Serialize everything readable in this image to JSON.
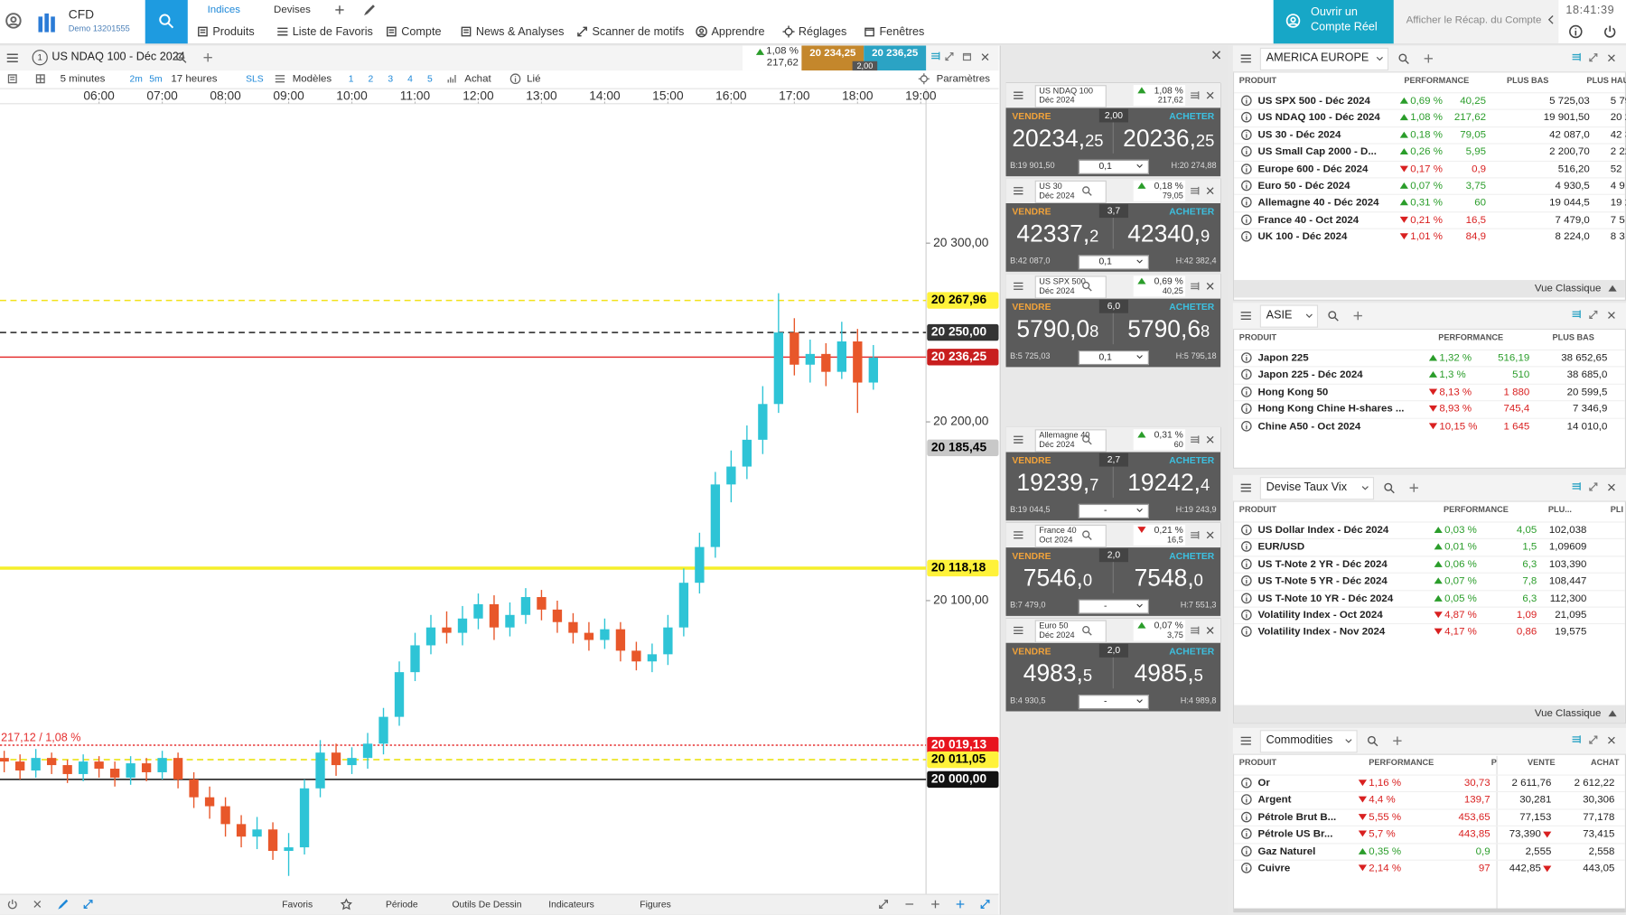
{
  "top_bar": {
    "brand": "CFD",
    "account": "Demo 13201555",
    "tabs": [
      "Indices",
      "Devises"
    ],
    "menu": [
      "Produits",
      "Liste de Favoris",
      "Compte",
      "News & Analyses",
      "Scanner de motifs",
      "Apprendre",
      "Réglages",
      "Fenêtres"
    ],
    "open_account": [
      "Ouvrir un",
      "Compte Réel"
    ],
    "summary": "Afficher le Récap. du Compte",
    "clock": "18:41:39"
  },
  "chart_window": {
    "window_number": "1",
    "instrument": "US NDAQ 100 - Déc 2024",
    "change": "1,08 %",
    "change_pts": "217,62",
    "sell": "20 234,25",
    "buy": "20 236,25",
    "spread": "2,00",
    "toolbar": {
      "interval": "5 minutes",
      "short": [
        "2m",
        "5m"
      ],
      "period": "17 heures",
      "sls": "SLS",
      "models": "Modèles",
      "numbers": [
        "1",
        "2",
        "3",
        "4",
        "5"
      ],
      "buy": "Achat",
      "linked": "Lié",
      "settings": "Paramètres"
    },
    "bottom": [
      "Favoris",
      "Période",
      "Outils De Dessin",
      "Indicateurs",
      "Figures"
    ]
  },
  "chart_data": {
    "type": "candlestick",
    "up_color": "#2ec4d6",
    "down_color": "#e8572a",
    "xlim": [
      "04:26",
      "19:05"
    ],
    "xticks": [
      "06:00",
      "07:00",
      "08:00",
      "09:00",
      "10:00",
      "11:00",
      "12:00",
      "13:00",
      "14:00",
      "15:00",
      "16:00",
      "17:00",
      "18:00",
      "19:00"
    ],
    "ylim": [
      19936,
      20378
    ],
    "yticks": [
      {
        "value": 20100,
        "label": "20 100,00"
      },
      {
        "value": 20200,
        "label": "20 200,00"
      },
      {
        "value": 20300,
        "label": "20 300,00"
      }
    ],
    "x": [
      "04:30",
      "04:45",
      "05:00",
      "05:15",
      "05:30",
      "05:45",
      "06:00",
      "06:15",
      "06:30",
      "06:45",
      "07:00",
      "07:15",
      "07:30",
      "07:45",
      "08:00",
      "08:15",
      "08:30",
      "08:45",
      "09:00",
      "09:15",
      "09:30",
      "09:45",
      "10:00",
      "10:15",
      "10:30",
      "10:45",
      "11:00",
      "11:15",
      "11:30",
      "11:45",
      "12:00",
      "12:15",
      "12:30",
      "12:45",
      "13:00",
      "13:15",
      "13:30",
      "13:45",
      "14:00",
      "14:15",
      "14:30",
      "14:45",
      "15:00",
      "15:15",
      "15:30",
      "15:45",
      "16:00",
      "16:15",
      "16:30",
      "16:45",
      "17:00",
      "17:15",
      "17:30",
      "17:45",
      "18:00",
      "18:15"
    ],
    "open": [
      20012,
      20010,
      20005,
      20012,
      20008,
      20003,
      20010,
      20006,
      20001,
      20009,
      20004,
      20012,
      20000,
      19990,
      19985,
      19975,
      19968,
      19972,
      19960,
      19962,
      19995,
      20015,
      20008,
      20012,
      20020,
      20035,
      20060,
      20075,
      20085,
      20082,
      20090,
      20098,
      20085,
      20092,
      20102,
      20095,
      20088,
      20082,
      20078,
      20084,
      20072,
      20066,
      20070,
      20085,
      20110,
      20130,
      20165,
      20175,
      20190,
      20210,
      20250,
      20232,
      20238,
      20228,
      20245,
      20222
    ],
    "high": [
      20016,
      20014,
      20017,
      20015,
      20011,
      20014,
      20013,
      20010,
      20013,
      20012,
      20016,
      20015,
      20004,
      19996,
      19990,
      19980,
      19979,
      19976,
      19970,
      20000,
      20022,
      20020,
      20018,
      20026,
      20040,
      20066,
      20082,
      20092,
      20094,
      20097,
      20104,
      20103,
      20099,
      20107,
      20106,
      20100,
      20093,
      20088,
      20090,
      20088,
      20077,
      20076,
      20092,
      20118,
      20138,
      20172,
      20184,
      20198,
      20220,
      20272,
      20258,
      20246,
      20244,
      20256,
      20252,
      20243
    ],
    "low": [
      20004,
      20000,
      20001,
      20003,
      19998,
      19999,
      20001,
      19996,
      19997,
      19999,
      20000,
      19995,
      19984,
      19978,
      19968,
      19962,
      19961,
      19955,
      19946,
      19958,
      19990,
      20002,
      20003,
      20006,
      20014,
      20030,
      20055,
      20070,
      20076,
      20075,
      20084,
      20078,
      20080,
      20087,
      20089,
      20082,
      20076,
      20072,
      20073,
      20066,
      20061,
      20060,
      20064,
      20080,
      20104,
      20124,
      20155,
      20168,
      20182,
      20205,
      20226,
      20222,
      20220,
      20224,
      20205,
      20218
    ],
    "close": [
      20010,
      20005,
      20012,
      20008,
      20003,
      20010,
      20006,
      20001,
      20009,
      20004,
      20012,
      20000,
      19990,
      19985,
      19975,
      19968,
      19972,
      19960,
      19962,
      19995,
      20015,
      20008,
      20012,
      20020,
      20035,
      20060,
      20075,
      20085,
      20082,
      20090,
      20098,
      20085,
      20092,
      20102,
      20095,
      20088,
      20082,
      20078,
      20084,
      20072,
      20066,
      20070,
      20085,
      20110,
      20130,
      20165,
      20175,
      20190,
      20210,
      20250,
      20232,
      20238,
      20228,
      20245,
      20222,
      20236
    ],
    "levels": [
      {
        "value": 20267.96,
        "label": "20 267,96",
        "color": "#f2e21a",
        "style": "dashed",
        "label_bg": "#fff23a",
        "label_fg": "#000"
      },
      {
        "value": 20250,
        "label": "20 250,00",
        "color": "#222222",
        "style": "dashed",
        "label_bg": "#333333",
        "label_fg": "#fff"
      },
      {
        "value": 20236.25,
        "label": "20 236,25",
        "color": "#e53030",
        "style": "solid",
        "label_bg": "#c81e1e",
        "label_fg": "#fff"
      },
      {
        "value": 20185.45,
        "label": "20 185,45",
        "color": "#999999",
        "style": "none",
        "label_bg": "#c8c8c8",
        "label_fg": "#000"
      },
      {
        "value": 20118.18,
        "label": "20 118,18",
        "color": "#f5ef2a",
        "style": "thick",
        "label_bg": "#fff23a",
        "label_fg": "#000"
      },
      {
        "value": 20019.13,
        "label": "20 019,13",
        "color": "#e53030",
        "style": "dotted",
        "label_bg": "#e8141e",
        "label_fg": "#fff",
        "note": "217,12 / 1,08 %"
      },
      {
        "value": 20011.05,
        "label": "20 011,05",
        "color": "#e8e000",
        "style": "dashed",
        "label_bg": "#fff23a",
        "label_fg": "#000"
      },
      {
        "value": 20000,
        "label": "20 000,00",
        "color": "#111111",
        "style": "solid",
        "label_bg": "#111111",
        "label_fg": "#fff"
      }
    ]
  },
  "ticket_labels": {
    "sell": "VENDRE",
    "buy": "ACHETER"
  },
  "tickets": [
    {
      "name": "US NDAQ 100",
      "expiry": "Déc 2024",
      "dir": "up",
      "change": "1,08 %",
      "change_pts": "217,62",
      "spread": "2,00",
      "sell": [
        "20234,",
        "25"
      ],
      "buy": [
        "20236,",
        "25"
      ],
      "low": "B:19 901,50",
      "qty": "0,1",
      "high": "H:20 274,88"
    },
    {
      "name": "US 30",
      "expiry": "Déc 2024",
      "dir": "up",
      "change": "0,18 %",
      "change_pts": "79,05",
      "spread": "3,7",
      "sell": [
        "42337,",
        "2"
      ],
      "buy": [
        "42340,",
        "9"
      ],
      "low": "B:42 087,0",
      "qty": "0,1",
      "high": "H:42 382,4"
    },
    {
      "name": "US SPX 500",
      "expiry": "Déc 2024",
      "dir": "up",
      "change": "0,69 %",
      "change_pts": "40,25",
      "spread": "6,0",
      "sell": [
        "5790,0",
        "8"
      ],
      "buy": [
        "5790,6",
        "8"
      ],
      "low": "B:5 725,03",
      "qty": "0,1",
      "high": "H:5 795,18"
    },
    {
      "name": "Allemagne 40",
      "expiry": "Déc 2024",
      "dir": "up",
      "change": "0,31 %",
      "change_pts": "60",
      "spread": "2,7",
      "sell": [
        "19239,",
        "7"
      ],
      "buy": [
        "19242,",
        "4"
      ],
      "low": "B:19 044,5",
      "qty": "-",
      "high": "H:19 243,9"
    },
    {
      "name": "France 40",
      "expiry": "Oct 2024",
      "dir": "down",
      "change": "0,21 %",
      "change_pts": "16,5",
      "spread": "2,0",
      "sell": [
        "7546,",
        "0"
      ],
      "buy": [
        "7548,",
        "0"
      ],
      "low": "B:7 479,0",
      "qty": "-",
      "high": "H:7 551,3"
    },
    {
      "name": "Euro 50",
      "expiry": "Déc 2024",
      "dir": "up",
      "change": "0,07 %",
      "change_pts": "3,75",
      "spread": "2,0",
      "sell": [
        "4983,",
        "5"
      ],
      "buy": [
        "4985,",
        "5"
      ],
      "low": "B:4 930,5",
      "qty": "-",
      "high": "H:4 989,8"
    }
  ],
  "watchlists": [
    {
      "title": "AMERICA EUROPE",
      "columns": [
        "PRODUIT",
        "PERFORMANCE",
        "PLUS BAS",
        "PLUS HAU"
      ],
      "footer": "Vue Classique",
      "rows": [
        {
          "name": "US SPX 500 - Déc 2024",
          "dir": "up",
          "perf": "0,69 %",
          "cells": [
            "40,25",
            "5 725,03",
            "5 79"
          ]
        },
        {
          "name": "US NDAQ 100 - Déc 2024",
          "dir": "up",
          "perf": "1,08 %",
          "cells": [
            "217,62",
            "19 901,50",
            "20 27"
          ]
        },
        {
          "name": "US 30 - Déc 2024",
          "dir": "up",
          "perf": "0,18 %",
          "cells": [
            "79,05",
            "42 087,0",
            "42 3"
          ]
        },
        {
          "name": "US Small Cap 2000 - D...",
          "dir": "up",
          "perf": "0,26 %",
          "cells": [
            "5,95",
            "2 200,70",
            "2 22"
          ]
        },
        {
          "name": "Europe 600 - Déc 2024",
          "dir": "down",
          "perf": "0,17 %",
          "cells": [
            "0,9",
            "516,20",
            "52"
          ]
        },
        {
          "name": "Euro 50 - Déc 2024",
          "dir": "up",
          "perf": "0,07 %",
          "cells": [
            "3,75",
            "4 930,5",
            "4 9"
          ]
        },
        {
          "name": "Allemagne 40 - Déc 2024",
          "dir": "up",
          "perf": "0,31 %",
          "cells": [
            "60",
            "19 044,5",
            "19 2"
          ]
        },
        {
          "name": "France 40 - Oct 2024",
          "dir": "down",
          "perf": "0,21 %",
          "cells": [
            "16,5",
            "7 479,0",
            "7 5"
          ]
        },
        {
          "name": "UK 100 - Déc 2024",
          "dir": "down",
          "perf": "1,01 %",
          "cells": [
            "84,9",
            "8 224,0",
            "8 3"
          ]
        }
      ]
    },
    {
      "title": "ASIE",
      "columns": [
        "PRODUIT",
        "PERFORMANCE",
        "PLUS BAS"
      ],
      "rows": [
        {
          "name": "Japon 225",
          "dir": "up",
          "perf": "1,32 %",
          "cells": [
            "516,19",
            "38 652,65"
          ]
        },
        {
          "name": "Japon 225 - Déc 2024",
          "dir": "up",
          "perf": "1,3 %",
          "cells": [
            "510",
            "38 685,0"
          ]
        },
        {
          "name": "Hong Kong 50",
          "dir": "down",
          "perf": "8,13 %",
          "cells": [
            "1 880",
            "20 599,5"
          ]
        },
        {
          "name": "Hong Kong Chine H-shares ...",
          "dir": "down",
          "perf": "8,93 %",
          "cells": [
            "745,4",
            "7 346,9"
          ]
        },
        {
          "name": "Chine A50 - Oct 2024",
          "dir": "down",
          "perf": "10,15 %",
          "cells": [
            "1 645",
            "14 010,0"
          ]
        }
      ]
    },
    {
      "title": "Devise Taux Vix",
      "columns": [
        "PRODUIT",
        "PERFORMANCE",
        "PLU...",
        "PLI"
      ],
      "footer": "Vue Classique",
      "rows": [
        {
          "name": "US Dollar Index - Déc 2024",
          "dir": "up",
          "perf": "0,03 %",
          "cells": [
            "4,05",
            "102,038"
          ]
        },
        {
          "name": "EUR/USD",
          "dir": "up",
          "perf": "0,01 %",
          "cells": [
            "1,5",
            "1,09609"
          ]
        },
        {
          "name": "US T-Note 2 YR - Déc 2024",
          "dir": "up",
          "perf": "0,06 %",
          "cells": [
            "6,3",
            "103,390"
          ]
        },
        {
          "name": "US T-Note 5 YR - Déc 2024",
          "dir": "up",
          "perf": "0,07 %",
          "cells": [
            "7,8",
            "108,447"
          ]
        },
        {
          "name": "US T-Note 10 YR - Déc 2024",
          "dir": "up",
          "perf": "0,05 %",
          "cells": [
            "6,3",
            "112,300"
          ]
        },
        {
          "name": "Volatility Index - Oct 2024",
          "dir": "down",
          "perf": "4,87 %",
          "cells": [
            "1,09",
            "21,095"
          ]
        },
        {
          "name": "Volatility Index - Nov 2024",
          "dir": "down",
          "perf": "4,17 %",
          "cells": [
            "0,86",
            "19,575"
          ]
        }
      ]
    },
    {
      "title": "Commodities",
      "columns": [
        "PRODUIT",
        "PERFORMANCE",
        "P",
        "VENTE",
        "ACHAT"
      ],
      "rows": [
        {
          "name": "Or",
          "dir": "down",
          "perf": "1,16 %",
          "cells": [
            "30,73",
            "2 611,76",
            "2 612,22"
          ]
        },
        {
          "name": "Argent",
          "dir": "down",
          "perf": "4,4 %",
          "cells": [
            "139,7",
            "30,281",
            "30,306"
          ]
        },
        {
          "name": "Pétrole Brut B...",
          "dir": "down",
          "perf": "5,55 %",
          "cells": [
            "453,65",
            "77,153",
            "77,178"
          ]
        },
        {
          "name": "Pétrole US Br...",
          "dir": "down",
          "perf": "5,7 %",
          "cells": [
            "443,85",
            "73,390",
            "73,415"
          ],
          "tick": "down"
        },
        {
          "name": "Gaz Naturel",
          "dir": "up",
          "perf": "0,35 %",
          "cells": [
            "0,9",
            "2,555",
            "2,558"
          ]
        },
        {
          "name": "Cuivre",
          "dir": "down",
          "perf": "2,14 %",
          "cells": [
            "97",
            "442,85",
            "443,05"
          ],
          "tick": "down"
        }
      ]
    }
  ]
}
